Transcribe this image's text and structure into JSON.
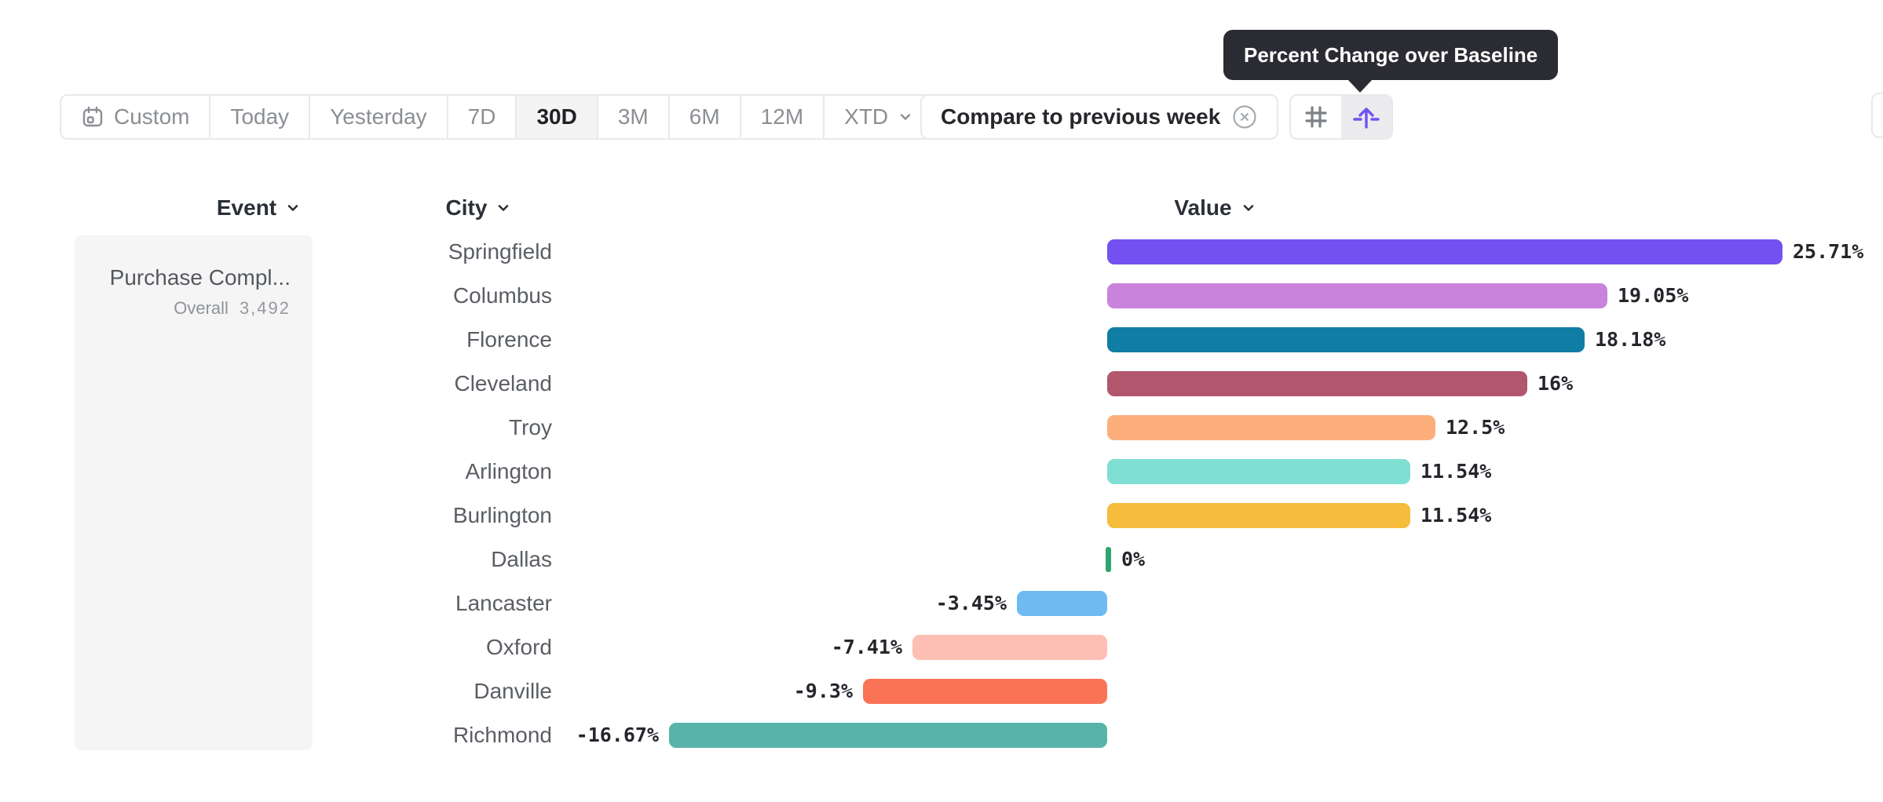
{
  "tooltip": {
    "text": "Percent Change over Baseline"
  },
  "toolbar": {
    "date_range_tabs": [
      {
        "label": "Custom",
        "icon": "calendar-icon",
        "selected": false
      },
      {
        "label": "Today",
        "selected": false
      },
      {
        "label": "Yesterday",
        "selected": false
      },
      {
        "label": "7D",
        "selected": false
      },
      {
        "label": "30D",
        "selected": true
      },
      {
        "label": "3M",
        "selected": false
      },
      {
        "label": "6M",
        "selected": false
      },
      {
        "label": "12M",
        "selected": false
      },
      {
        "label": "XTD",
        "chevron": true,
        "selected": false
      }
    ],
    "compare_label": "Compare to previous week",
    "view_buttons": [
      {
        "icon": "hash-grid-icon",
        "active": false
      },
      {
        "icon": "percent-change-baseline-icon",
        "active": true
      }
    ]
  },
  "columns": {
    "event": "Event",
    "city": "City",
    "value": "Value"
  },
  "event_panel": {
    "name": "Purchase Compl...",
    "overall_label": "Overall",
    "overall_value": "3,492"
  },
  "chart_data": {
    "type": "bar",
    "orientation": "horizontal",
    "title": "Percent Change over Baseline",
    "categories": [
      "Springfield",
      "Columbus",
      "Florence",
      "Cleveland",
      "Troy",
      "Arlington",
      "Burlington",
      "Dallas",
      "Lancaster",
      "Oxford",
      "Danville",
      "Richmond"
    ],
    "values": [
      25.71,
      19.05,
      18.18,
      16,
      12.5,
      11.54,
      11.54,
      0,
      -3.45,
      -7.41,
      -9.3,
      -16.67
    ],
    "value_labels": [
      "25.71%",
      "19.05%",
      "18.18%",
      "16%",
      "12.5%",
      "11.54%",
      "11.54%",
      "0%",
      "-3.45%",
      "-7.41%",
      "-9.3%",
      "-16.67%"
    ],
    "bar_colors": [
      "#7351F1",
      "#C983DC",
      "#107EA4",
      "#B1566C",
      "#FCAF7B",
      "#7FDFD3",
      "#F6BC3B",
      "#2FA46E",
      "#6FBAF3",
      "#FDBEB4",
      "#FB7355",
      "#58B3A8"
    ],
    "xlim": [
      -16.67,
      25.71
    ],
    "baseline": 0,
    "grid": false,
    "legend": false
  },
  "colors": {
    "accent_purple": "#7351F1",
    "tooltip_bg": "#2B2B33",
    "panel_bg": "#F5F5F6",
    "border": "#E8E9EB",
    "text_dark": "#2B3036",
    "text_gray": "#8B8F94"
  }
}
